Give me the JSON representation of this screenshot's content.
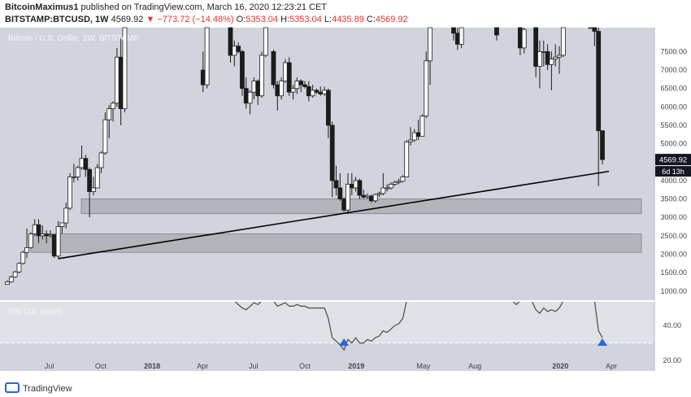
{
  "header": {
    "author": "BitcoinMaximus1",
    "published": " published on TradingView.com, March 16, 2020 12:23:21 CET",
    "symbol": "BITSTAMP:BTCUSD, 1W",
    "last": "4569.92",
    "change": "−773.72 (−14.48%)",
    "open_label": "O:",
    "open": "5353.04",
    "high_label": "H:",
    "high": "5353.04",
    "low_label": "L:",
    "low": "4435.89",
    "close_label": "C:",
    "close": "4569.92"
  },
  "watermark": "Bitcoin / U.S. Dollar, 1W, BITSTAMP",
  "footer": {
    "brand": "TradingView"
  },
  "colors": {
    "plot_bg": "#d1d4dc",
    "rsi_band_bg": "#dfe1e6",
    "zone_fill": "#aeb0b5",
    "candle": "#1c1c1c",
    "price_tag_bg": "#131722",
    "rsi_line": "#4a4a4a",
    "signal_arrow": "#2a66d6"
  },
  "chart_data": {
    "type": "candlestick",
    "title": "Bitcoin / U.S. Dollar, 1W, BITSTAMP",
    "y_axis_price": {
      "ylim": [
        730,
        8150
      ],
      "ticks": [
        1000,
        1500,
        2000,
        2500,
        3000,
        3500,
        4000,
        4500,
        5000,
        5500,
        6000,
        6500,
        7000,
        7500
      ]
    },
    "y_axis_rsi": {
      "ylim": [
        14,
        54
      ],
      "ticks": [
        20,
        40
      ],
      "oversold_line": 30
    },
    "x_tick_labels": [
      "Jul",
      "Oct",
      "2018",
      "Apr",
      "Jul",
      "Oct",
      "2019",
      "May",
      "Aug",
      "2020",
      "Apr"
    ],
    "last_price_label": "4569.92",
    "countdown_label": "6d 13h",
    "rsi_label": "RSI (14, close)",
    "support_zones": [
      {
        "from": 3100,
        "to": 3500
      },
      {
        "from": 2050,
        "to": 2550
      }
    ],
    "trendline": {
      "start": {
        "date": "2017-07-17",
        "price": 1880
      },
      "end": {
        "date": "2020-03-16",
        "price": 4250
      }
    },
    "rsi_signals": [
      {
        "date": "2018-12-10"
      },
      {
        "date": "2020-03-16"
      }
    ],
    "candles": [
      {
        "date": "2017-04-17",
        "o": 1180,
        "h": 1290,
        "l": 1170,
        "c": 1250
      },
      {
        "date": "2017-04-24",
        "o": 1250,
        "h": 1420,
        "l": 1230,
        "c": 1380
      },
      {
        "date": "2017-05-01",
        "o": 1380,
        "h": 1550,
        "l": 1360,
        "c": 1520
      },
      {
        "date": "2017-05-08",
        "o": 1520,
        "h": 1780,
        "l": 1480,
        "c": 1750
      },
      {
        "date": "2017-05-15",
        "o": 1750,
        "h": 2100,
        "l": 1720,
        "c": 2050
      },
      {
        "date": "2017-05-22",
        "o": 2050,
        "h": 2700,
        "l": 1900,
        "c": 2180
      },
      {
        "date": "2017-05-29",
        "o": 2180,
        "h": 2600,
        "l": 2150,
        "c": 2550
      },
      {
        "date": "2017-06-05",
        "o": 2550,
        "h": 2950,
        "l": 2500,
        "c": 2800
      },
      {
        "date": "2017-06-12",
        "o": 2800,
        "h": 2950,
        "l": 2300,
        "c": 2500
      },
      {
        "date": "2017-06-19",
        "o": 2500,
        "h": 2780,
        "l": 2400,
        "c": 2550
      },
      {
        "date": "2017-06-26",
        "o": 2550,
        "h": 2650,
        "l": 2300,
        "c": 2500
      },
      {
        "date": "2017-07-03",
        "o": 2500,
        "h": 2650,
        "l": 2450,
        "c": 2530
      },
      {
        "date": "2017-07-10",
        "o": 2530,
        "h": 2550,
        "l": 1900,
        "c": 1950
      },
      {
        "date": "2017-07-17",
        "o": 1950,
        "h": 2900,
        "l": 1880,
        "c": 2750
      },
      {
        "date": "2017-07-24",
        "o": 2750,
        "h": 2850,
        "l": 2550,
        "c": 2850
      },
      {
        "date": "2017-07-31",
        "o": 2850,
        "h": 3400,
        "l": 2700,
        "c": 3250
      },
      {
        "date": "2017-08-07",
        "o": 3250,
        "h": 4200,
        "l": 3200,
        "c": 4100
      },
      {
        "date": "2017-08-14",
        "o": 4100,
        "h": 4450,
        "l": 3950,
        "c": 4100
      },
      {
        "date": "2017-08-21",
        "o": 4100,
        "h": 4400,
        "l": 4000,
        "c": 4350
      },
      {
        "date": "2017-08-28",
        "o": 4350,
        "h": 4950,
        "l": 4300,
        "c": 4600
      },
      {
        "date": "2017-09-04",
        "o": 4600,
        "h": 4700,
        "l": 4100,
        "c": 4300
      },
      {
        "date": "2017-09-11",
        "o": 4300,
        "h": 4350,
        "l": 3000,
        "c": 3700
      },
      {
        "date": "2017-09-18",
        "o": 3700,
        "h": 4100,
        "l": 3600,
        "c": 3800
      },
      {
        "date": "2017-09-25",
        "o": 3800,
        "h": 4450,
        "l": 3800,
        "c": 4350
      },
      {
        "date": "2017-10-02",
        "o": 4350,
        "h": 4800,
        "l": 4200,
        "c": 4750
      },
      {
        "date": "2017-10-09",
        "o": 4750,
        "h": 5850,
        "l": 4700,
        "c": 5650
      },
      {
        "date": "2017-10-16",
        "o": 5650,
        "h": 6050,
        "l": 5150,
        "c": 5950
      },
      {
        "date": "2017-10-23",
        "o": 5950,
        "h": 6150,
        "l": 5600,
        "c": 6100
      },
      {
        "date": "2017-10-30",
        "o": 6100,
        "h": 7600,
        "l": 6000,
        "c": 7350
      },
      {
        "date": "2017-11-06",
        "o": 7350,
        "h": 7850,
        "l": 5500,
        "c": 5950
      },
      {
        "date": "2017-11-13",
        "o": 5950,
        "h": 8150,
        "l": 5850,
        "c": 8150
      },
      {
        "date": "2018-04-02",
        "o": 7000,
        "h": 7500,
        "l": 6400,
        "c": 6600
      },
      {
        "date": "2018-04-09",
        "o": 6600,
        "h": 8150,
        "l": 6500,
        "c": 8150
      },
      {
        "date": "2018-05-21",
        "o": 8150,
        "h": 8150,
        "l": 7200,
        "c": 7400
      },
      {
        "date": "2018-05-28",
        "o": 7400,
        "h": 7800,
        "l": 7100,
        "c": 7650
      },
      {
        "date": "2018-06-04",
        "o": 7650,
        "h": 7750,
        "l": 7450,
        "c": 7500
      },
      {
        "date": "2018-06-11",
        "o": 7500,
        "h": 7550,
        "l": 6300,
        "c": 6500
      },
      {
        "date": "2018-06-18",
        "o": 6500,
        "h": 6800,
        "l": 5950,
        "c": 6100
      },
      {
        "date": "2018-06-25",
        "o": 6100,
        "h": 6450,
        "l": 5800,
        "c": 6400
      },
      {
        "date": "2018-07-02",
        "o": 6400,
        "h": 6800,
        "l": 6200,
        "c": 6700
      },
      {
        "date": "2018-07-09",
        "o": 6700,
        "h": 6750,
        "l": 6050,
        "c": 6300
      },
      {
        "date": "2018-07-16",
        "o": 6300,
        "h": 7500,
        "l": 6250,
        "c": 7400
      },
      {
        "date": "2018-07-23",
        "o": 7400,
        "h": 8150,
        "l": 7350,
        "c": 8150
      },
      {
        "date": "2018-08-06",
        "o": 7500,
        "h": 7550,
        "l": 6500,
        "c": 6600
      },
      {
        "date": "2018-08-13",
        "o": 6600,
        "h": 6700,
        "l": 5900,
        "c": 6300
      },
      {
        "date": "2018-08-20",
        "o": 6300,
        "h": 6800,
        "l": 6200,
        "c": 6700
      },
      {
        "date": "2018-08-27",
        "o": 6700,
        "h": 7300,
        "l": 6650,
        "c": 7200
      },
      {
        "date": "2018-09-03",
        "o": 7200,
        "h": 7350,
        "l": 6300,
        "c": 6400
      },
      {
        "date": "2018-09-10",
        "o": 6400,
        "h": 6600,
        "l": 6200,
        "c": 6500
      },
      {
        "date": "2018-09-17",
        "o": 6500,
        "h": 6800,
        "l": 6350,
        "c": 6700
      },
      {
        "date": "2018-09-24",
        "o": 6700,
        "h": 6750,
        "l": 6400,
        "c": 6600
      },
      {
        "date": "2018-10-01",
        "o": 6600,
        "h": 6700,
        "l": 6500,
        "c": 6550
      },
      {
        "date": "2018-10-08",
        "o": 6550,
        "h": 6700,
        "l": 6150,
        "c": 6300
      },
      {
        "date": "2018-10-15",
        "o": 6300,
        "h": 6600,
        "l": 6250,
        "c": 6450
      },
      {
        "date": "2018-10-22",
        "o": 6450,
        "h": 6500,
        "l": 6350,
        "c": 6400
      },
      {
        "date": "2018-10-29",
        "o": 6400,
        "h": 6550,
        "l": 6300,
        "c": 6350
      },
      {
        "date": "2018-11-05",
        "o": 6350,
        "h": 6550,
        "l": 6300,
        "c": 6450
      },
      {
        "date": "2018-11-12",
        "o": 6450,
        "h": 6500,
        "l": 5150,
        "c": 5500
      },
      {
        "date": "2018-11-19",
        "o": 5500,
        "h": 5600,
        "l": 3550,
        "c": 4000
      },
      {
        "date": "2018-11-26",
        "o": 4000,
        "h": 4400,
        "l": 3600,
        "c": 3800
      },
      {
        "date": "2018-12-03",
        "o": 3800,
        "h": 4200,
        "l": 3450,
        "c": 3500
      },
      {
        "date": "2018-12-10",
        "o": 3500,
        "h": 3550,
        "l": 3150,
        "c": 3200
      },
      {
        "date": "2018-12-17",
        "o": 3200,
        "h": 4200,
        "l": 3100,
        "c": 3900
      },
      {
        "date": "2018-12-24",
        "o": 3900,
        "h": 4200,
        "l": 3600,
        "c": 3800
      },
      {
        "date": "2018-12-31",
        "o": 3800,
        "h": 4100,
        "l": 3700,
        "c": 4000
      },
      {
        "date": "2019-01-07",
        "o": 4000,
        "h": 4050,
        "l": 3500,
        "c": 3600
      },
      {
        "date": "2019-01-14",
        "o": 3600,
        "h": 3750,
        "l": 3500,
        "c": 3550
      },
      {
        "date": "2019-01-21",
        "o": 3550,
        "h": 3650,
        "l": 3500,
        "c": 3580
      },
      {
        "date": "2019-01-28",
        "o": 3580,
        "h": 3620,
        "l": 3400,
        "c": 3450
      },
      {
        "date": "2019-02-04",
        "o": 3450,
        "h": 3650,
        "l": 3400,
        "c": 3620
      },
      {
        "date": "2019-02-11",
        "o": 3620,
        "h": 3700,
        "l": 3550,
        "c": 3650
      },
      {
        "date": "2019-02-18",
        "o": 3650,
        "h": 4200,
        "l": 3600,
        "c": 3800
      },
      {
        "date": "2019-02-25",
        "o": 3800,
        "h": 3900,
        "l": 3700,
        "c": 3800
      },
      {
        "date": "2019-03-04",
        "o": 3800,
        "h": 3950,
        "l": 3750,
        "c": 3900
      },
      {
        "date": "2019-03-11",
        "o": 3900,
        "h": 4000,
        "l": 3850,
        "c": 3950
      },
      {
        "date": "2019-03-18",
        "o": 3950,
        "h": 4050,
        "l": 3900,
        "c": 3980
      },
      {
        "date": "2019-03-25",
        "o": 3980,
        "h": 4150,
        "l": 3950,
        "c": 4100
      },
      {
        "date": "2019-04-01",
        "o": 4100,
        "h": 5100,
        "l": 4100,
        "c": 5050
      },
      {
        "date": "2019-04-08",
        "o": 5050,
        "h": 5450,
        "l": 4950,
        "c": 5100
      },
      {
        "date": "2019-04-15",
        "o": 5100,
        "h": 5400,
        "l": 5050,
        "c": 5300
      },
      {
        "date": "2019-04-22",
        "o": 5300,
        "h": 5650,
        "l": 5100,
        "c": 5200
      },
      {
        "date": "2019-04-29",
        "o": 5200,
        "h": 5800,
        "l": 5200,
        "c": 5750
      },
      {
        "date": "2019-05-06",
        "o": 5750,
        "h": 7500,
        "l": 5700,
        "c": 7250
      },
      {
        "date": "2019-05-13",
        "o": 7250,
        "h": 8150,
        "l": 6600,
        "c": 8150
      },
      {
        "date": "2019-06-24",
        "o": 8150,
        "h": 8150,
        "l": 7800,
        "c": 8000
      },
      {
        "date": "2019-07-01",
        "o": 8000,
        "h": 8150,
        "l": 7550,
        "c": 7700
      },
      {
        "date": "2019-07-08",
        "o": 7700,
        "h": 8150,
        "l": 7600,
        "c": 8150
      },
      {
        "date": "2019-09-09",
        "o": 8150,
        "h": 8150,
        "l": 7800,
        "c": 7950
      },
      {
        "date": "2019-10-21",
        "o": 8150,
        "h": 8150,
        "l": 7400,
        "c": 7600
      },
      {
        "date": "2019-10-28",
        "o": 7600,
        "h": 8150,
        "l": 7450,
        "c": 8100
      },
      {
        "date": "2019-11-18",
        "o": 8150,
        "h": 8150,
        "l": 6800,
        "c": 7100
      },
      {
        "date": "2019-11-25",
        "o": 7100,
        "h": 7800,
        "l": 6500,
        "c": 7500
      },
      {
        "date": "2019-12-02",
        "o": 7500,
        "h": 7800,
        "l": 7100,
        "c": 7500
      },
      {
        "date": "2019-12-09",
        "o": 7500,
        "h": 7700,
        "l": 7000,
        "c": 7150
      },
      {
        "date": "2019-12-16",
        "o": 7150,
        "h": 7500,
        "l": 6450,
        "c": 7300
      },
      {
        "date": "2019-12-23",
        "o": 7300,
        "h": 7700,
        "l": 7100,
        "c": 7350
      },
      {
        "date": "2019-12-30",
        "o": 7350,
        "h": 7650,
        "l": 6900,
        "c": 7400
      },
      {
        "date": "2020-01-06",
        "o": 7400,
        "h": 8150,
        "l": 7350,
        "c": 8150
      },
      {
        "date": "2020-02-24",
        "o": 8150,
        "h": 8150,
        "l": 8150,
        "c": 8150
      },
      {
        "date": "2020-03-02",
        "o": 8150,
        "h": 8150,
        "l": 7650,
        "c": 8050
      },
      {
        "date": "2020-03-09",
        "o": 8050,
        "h": 8150,
        "l": 3850,
        "c": 5353.04
      },
      {
        "date": "2020-03-16",
        "o": 5353.04,
        "h": 5353.04,
        "l": 4435.89,
        "c": 4569.92
      }
    ],
    "rsi": [
      {
        "date": "2017-04-17",
        "v": 55
      },
      {
        "date": "2017-06-12",
        "v": 55
      },
      {
        "date": "2018-05-28",
        "v": 54
      },
      {
        "date": "2018-06-04",
        "v": 52
      },
      {
        "date": "2018-06-11",
        "v": 50
      },
      {
        "date": "2018-06-18",
        "v": 49
      },
      {
        "date": "2018-06-25",
        "v": 51
      },
      {
        "date": "2018-07-02",
        "v": 53
      },
      {
        "date": "2018-07-09",
        "v": 52
      },
      {
        "date": "2018-07-16",
        "v": 55
      },
      {
        "date": "2018-08-06",
        "v": 55
      },
      {
        "date": "2018-08-13",
        "v": 51
      },
      {
        "date": "2018-08-20",
        "v": 52
      },
      {
        "date": "2018-08-27",
        "v": 53
      },
      {
        "date": "2018-09-03",
        "v": 51
      },
      {
        "date": "2018-09-10",
        "v": 51
      },
      {
        "date": "2018-09-17",
        "v": 52
      },
      {
        "date": "2018-09-24",
        "v": 51
      },
      {
        "date": "2018-10-01",
        "v": 51
      },
      {
        "date": "2018-10-08",
        "v": 50
      },
      {
        "date": "2018-10-15",
        "v": 50
      },
      {
        "date": "2018-10-22",
        "v": 50
      },
      {
        "date": "2018-10-29",
        "v": 50
      },
      {
        "date": "2018-11-05",
        "v": 50
      },
      {
        "date": "2018-11-12",
        "v": 44
      },
      {
        "date": "2018-11-19",
        "v": 33
      },
      {
        "date": "2018-11-26",
        "v": 31
      },
      {
        "date": "2018-12-03",
        "v": 29
      },
      {
        "date": "2018-12-10",
        "v": 26
      },
      {
        "date": "2018-12-17",
        "v": 32
      },
      {
        "date": "2018-12-24",
        "v": 30
      },
      {
        "date": "2018-12-31",
        "v": 33
      },
      {
        "date": "2019-01-07",
        "v": 30
      },
      {
        "date": "2019-01-14",
        "v": 30
      },
      {
        "date": "2019-01-21",
        "v": 32
      },
      {
        "date": "2019-01-28",
        "v": 31
      },
      {
        "date": "2019-02-04",
        "v": 33
      },
      {
        "date": "2019-02-11",
        "v": 34
      },
      {
        "date": "2019-02-18",
        "v": 37
      },
      {
        "date": "2019-02-25",
        "v": 36
      },
      {
        "date": "2019-03-04",
        "v": 38
      },
      {
        "date": "2019-03-11",
        "v": 40
      },
      {
        "date": "2019-03-18",
        "v": 41
      },
      {
        "date": "2019-03-25",
        "v": 44
      },
      {
        "date": "2019-04-01",
        "v": 54
      },
      {
        "date": "2019-10-07",
        "v": 55
      },
      {
        "date": "2019-10-14",
        "v": 52
      },
      {
        "date": "2019-10-21",
        "v": 54
      },
      {
        "date": "2019-11-11",
        "v": 55
      },
      {
        "date": "2019-11-18",
        "v": 49
      },
      {
        "date": "2019-11-25",
        "v": 47
      },
      {
        "date": "2019-12-02",
        "v": 50
      },
      {
        "date": "2019-12-09",
        "v": 48
      },
      {
        "date": "2019-12-16",
        "v": 49
      },
      {
        "date": "2019-12-23",
        "v": 48
      },
      {
        "date": "2019-12-30",
        "v": 50
      },
      {
        "date": "2020-01-06",
        "v": 55
      },
      {
        "date": "2020-03-02",
        "v": 55
      },
      {
        "date": "2020-03-09",
        "v": 37
      },
      {
        "date": "2020-03-16",
        "v": 33
      }
    ]
  }
}
